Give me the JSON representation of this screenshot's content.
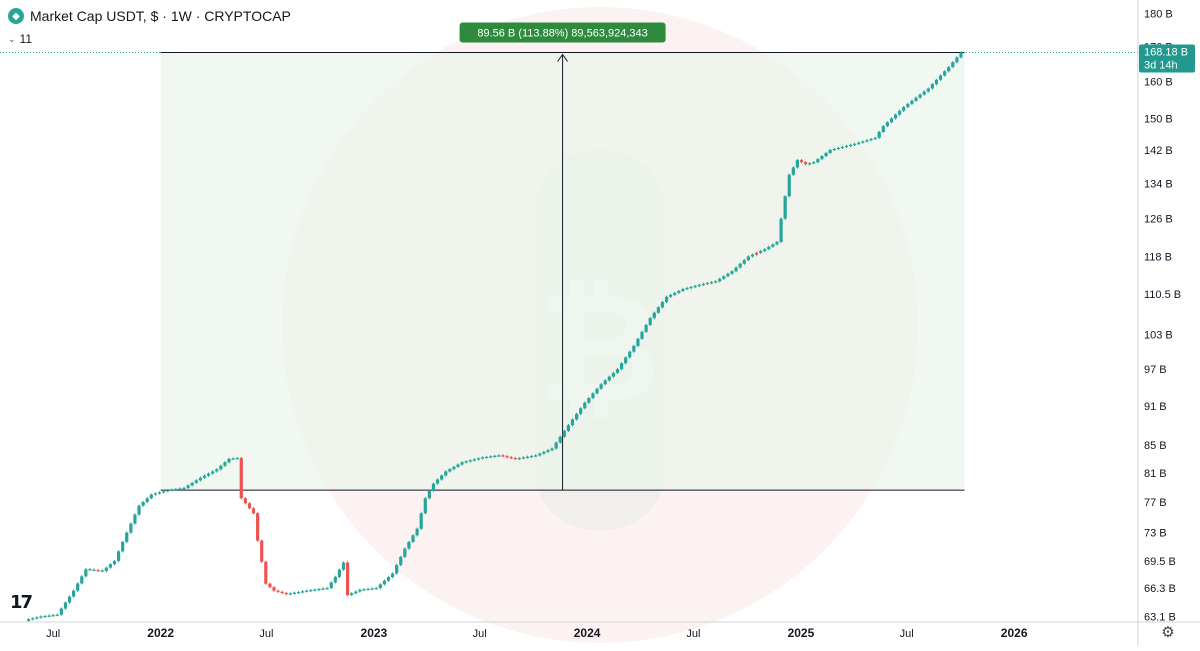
{
  "header": {
    "symbol_icon": "tether-diamond-icon",
    "title": "Market Cap USDT, $ · 1W · CRYPTOCAP"
  },
  "indicator": {
    "label": "11",
    "icon": "chevron-down-icon"
  },
  "measure": {
    "label": "89.56 B (113.88%) 89,563,924,343",
    "color": "#2e8b3d"
  },
  "price_badge": {
    "value": "168.18 B",
    "countdown": "3d 14h",
    "color": "#22998f"
  },
  "colors": {
    "up": "#26a69a",
    "down": "#ef5350",
    "bg_watermark": "#f7dada"
  },
  "chart_data": {
    "type": "candlestick",
    "title": "Market Cap USDT, $ · 1W · CRYPTOCAP",
    "yaxis_ticks": [
      "180 B",
      "170 B",
      "160 B",
      "150 B",
      "142 B",
      "134 B",
      "126 B",
      "118 B",
      "110.5 B",
      "103 B",
      "97 B",
      "91 B",
      "85 B",
      "81 B",
      "77 B",
      "73 B",
      "69.5 B",
      "66.3 B",
      "63.1 B"
    ],
    "xaxis_ticks": [
      "Jul",
      "2022",
      "Jul",
      "2023",
      "Jul",
      "2024",
      "Jul",
      "2025",
      "Jul",
      "2026"
    ],
    "ylim": [
      62.5,
      183
    ],
    "x_range": [
      "2021-04-01",
      "2026-08-01"
    ],
    "scale": "log",
    "grid": false,
    "last_value": "168.18 B",
    "measured_range": {
      "from": 78.6,
      "to": 168.2,
      "change": "89.56 B",
      "percent": "113.88%"
    },
    "anchors": [
      [
        "2021-05-20",
        62.8
      ],
      [
        "2021-06-10",
        63.1
      ],
      [
        "2021-07-08",
        63.3
      ],
      [
        "2021-08-05",
        66.0
      ],
      [
        "2021-08-26",
        68.5
      ],
      [
        "2021-09-23",
        68.3
      ],
      [
        "2021-10-14",
        69.5
      ],
      [
        "2021-11-04",
        73.0
      ],
      [
        "2021-11-25",
        76.5
      ],
      [
        "2021-12-16",
        78.0
      ],
      [
        "2022-01-13",
        78.6
      ],
      [
        "2022-02-10",
        78.9
      ],
      [
        "2022-03-10",
        80.3
      ],
      [
        "2022-04-07",
        81.5
      ],
      [
        "2022-04-28",
        83.0
      ],
      [
        "2022-05-12",
        83.1
      ],
      [
        "2022-05-19",
        77.5
      ],
      [
        "2022-06-09",
        75.5
      ],
      [
        "2022-06-16",
        72.0
      ],
      [
        "2022-06-30",
        66.8
      ],
      [
        "2022-07-14",
        66.0
      ],
      [
        "2022-08-04",
        65.6
      ],
      [
        "2022-09-08",
        66.0
      ],
      [
        "2022-10-13",
        66.3
      ],
      [
        "2022-10-27",
        67.6
      ],
      [
        "2022-11-10",
        69.3
      ],
      [
        "2022-11-17",
        65.5
      ],
      [
        "2022-12-08",
        66.1
      ],
      [
        "2023-01-05",
        66.3
      ],
      [
        "2023-02-02",
        68.0
      ],
      [
        "2023-02-23",
        71.0
      ],
      [
        "2023-03-16",
        73.5
      ],
      [
        "2023-03-30",
        77.5
      ],
      [
        "2023-04-13",
        79.5
      ],
      [
        "2023-05-04",
        81.2
      ],
      [
        "2023-06-01",
        82.5
      ],
      [
        "2023-07-06",
        83.2
      ],
      [
        "2023-08-03",
        83.5
      ],
      [
        "2023-08-31",
        83.0
      ],
      [
        "2023-10-05",
        83.5
      ],
      [
        "2023-11-02",
        84.5
      ],
      [
        "2023-11-30",
        88.0
      ],
      [
        "2023-12-28",
        91.5
      ],
      [
        "2024-01-25",
        94.5
      ],
      [
        "2024-02-22",
        97.0
      ],
      [
        "2024-03-21",
        101.0
      ],
      [
        "2024-04-18",
        106.0
      ],
      [
        "2024-05-16",
        110.0
      ],
      [
        "2024-06-13",
        111.5
      ],
      [
        "2024-07-18",
        112.5
      ],
      [
        "2024-08-08",
        113.0
      ],
      [
        "2024-09-05",
        115.0
      ],
      [
        "2024-10-03",
        118.0
      ],
      [
        "2024-10-31",
        119.5
      ],
      [
        "2024-11-21",
        121.0
      ],
      [
        "2024-11-28",
        126.0
      ],
      [
        "2024-12-12",
        136.0
      ],
      [
        "2024-12-26",
        139.5
      ],
      [
        "2025-01-09",
        138.5
      ],
      [
        "2025-01-23",
        139.0
      ],
      [
        "2025-02-20",
        142.0
      ],
      [
        "2025-04-03",
        143.5
      ],
      [
        "2025-05-08",
        145.0
      ],
      [
        "2025-05-22",
        148.0
      ],
      [
        "2025-06-26",
        153.0
      ],
      [
        "2025-08-07",
        158.0
      ],
      [
        "2025-09-11",
        164.0
      ],
      [
        "2025-10-02",
        168.18
      ]
    ],
    "red_candles": [
      "2022-05-19",
      "2022-05-26",
      "2022-06-09",
      "2022-06-16",
      "2022-06-30",
      "2022-11-17",
      "2023-08-31",
      "2024-07-25",
      "2024-10-17",
      "2025-01-02",
      "2025-01-09"
    ]
  }
}
